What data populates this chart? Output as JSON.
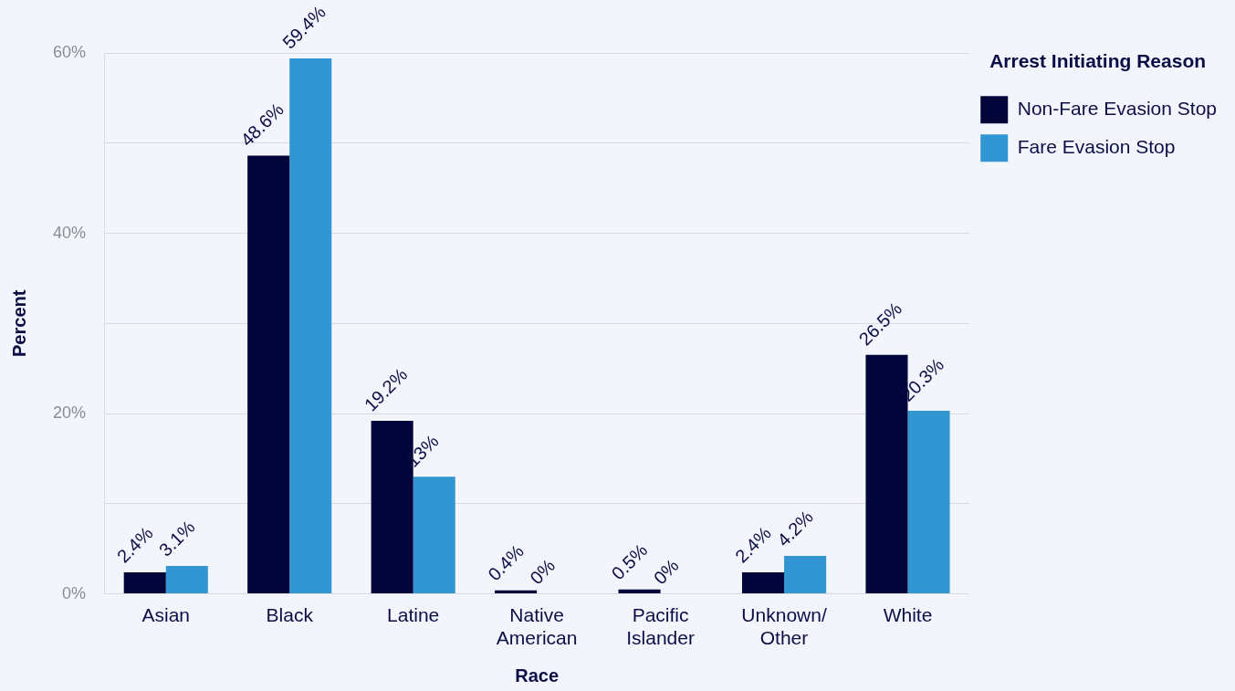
{
  "chart_data": {
    "type": "bar",
    "xlabel": "Race",
    "ylabel": "Percent",
    "legend_title": "Arrest Initiating Reason",
    "legend": "top right",
    "grid": "y",
    "categories": [
      "Asian",
      "Black",
      "Latine",
      "Native American",
      "Pacific Islander",
      "Unknown/Other",
      "White"
    ],
    "ylim": [
      0,
      60
    ],
    "yticks": [
      {
        "value": 0,
        "label": "0%"
      },
      {
        "value": 10,
        "label": null
      },
      {
        "value": 20,
        "label": "20%"
      },
      {
        "value": 30,
        "label": null
      },
      {
        "value": 40,
        "label": "40%"
      },
      {
        "value": 50,
        "label": null
      },
      {
        "value": 60,
        "label": "60%"
      }
    ],
    "series": [
      {
        "name": "Non-Fare Evasion Stop",
        "color": "#03043a",
        "values": [
          2.4,
          48.6,
          19.2,
          0.4,
          0.5,
          2.4,
          26.5
        ],
        "value_labels": [
          "2.4%",
          "48.6%",
          "19.2%",
          "0.4%",
          "0.5%",
          "2.4%",
          "26.5%"
        ]
      },
      {
        "name": "Fare Evasion Stop",
        "color": "#3196d1",
        "values": [
          3.1,
          59.4,
          13,
          0,
          0,
          4.2,
          20.3
        ],
        "value_labels": [
          "3.1%",
          "59.4%",
          "13%",
          "0%",
          "0%",
          "4.2%",
          "20.3%"
        ]
      }
    ]
  }
}
